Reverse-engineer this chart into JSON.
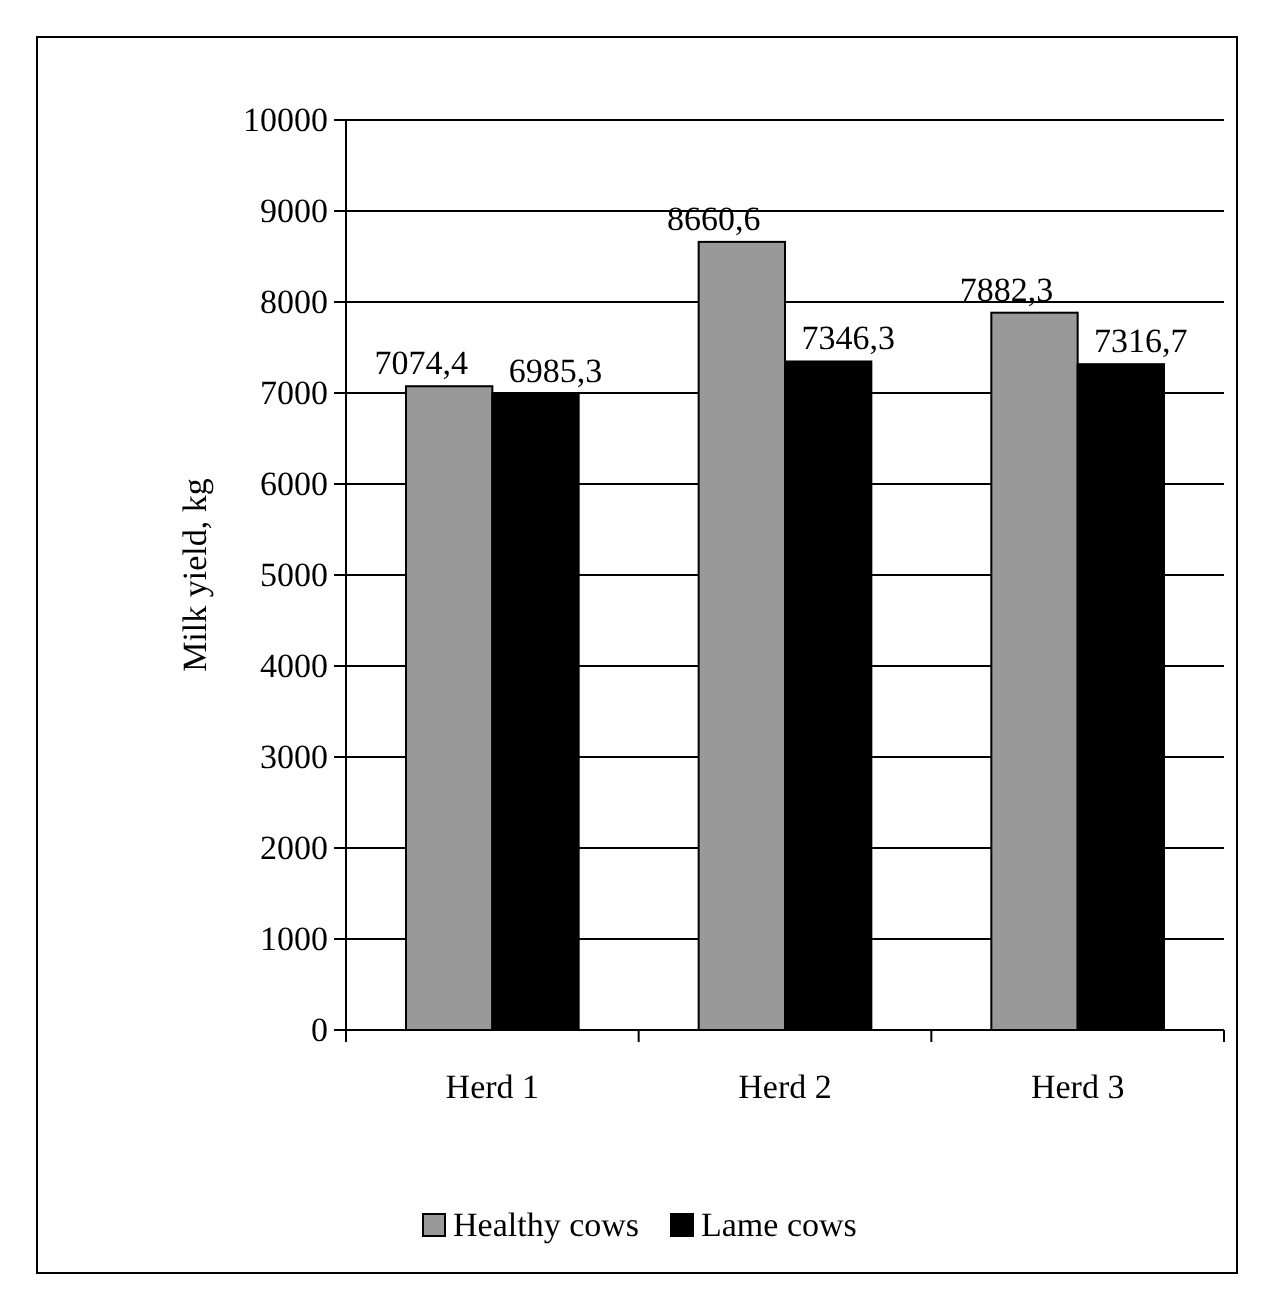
{
  "chart_data": {
    "type": "bar",
    "ylabel": "Milk yield, kg",
    "categories": [
      "Herd 1",
      "Herd 2",
      "Herd 3"
    ],
    "series": [
      {
        "name": "Healthy cows",
        "color": "#999999",
        "values": [
          7074.4,
          8660.6,
          7882.3
        ],
        "value_labels": [
          "7074,4",
          "8660,6",
          "7882,3"
        ]
      },
      {
        "name": "Lame cows",
        "color": "#000000",
        "values": [
          6985.3,
          7346.3,
          7316.7
        ],
        "value_labels": [
          "6985,3",
          "7346,3",
          "7316,7"
        ]
      }
    ],
    "ylim": [
      0,
      10000
    ],
    "yticks": [
      0,
      1000,
      2000,
      3000,
      4000,
      5000,
      6000,
      7000,
      8000,
      9000,
      10000
    ],
    "grid": "y",
    "legend": "bottom"
  }
}
